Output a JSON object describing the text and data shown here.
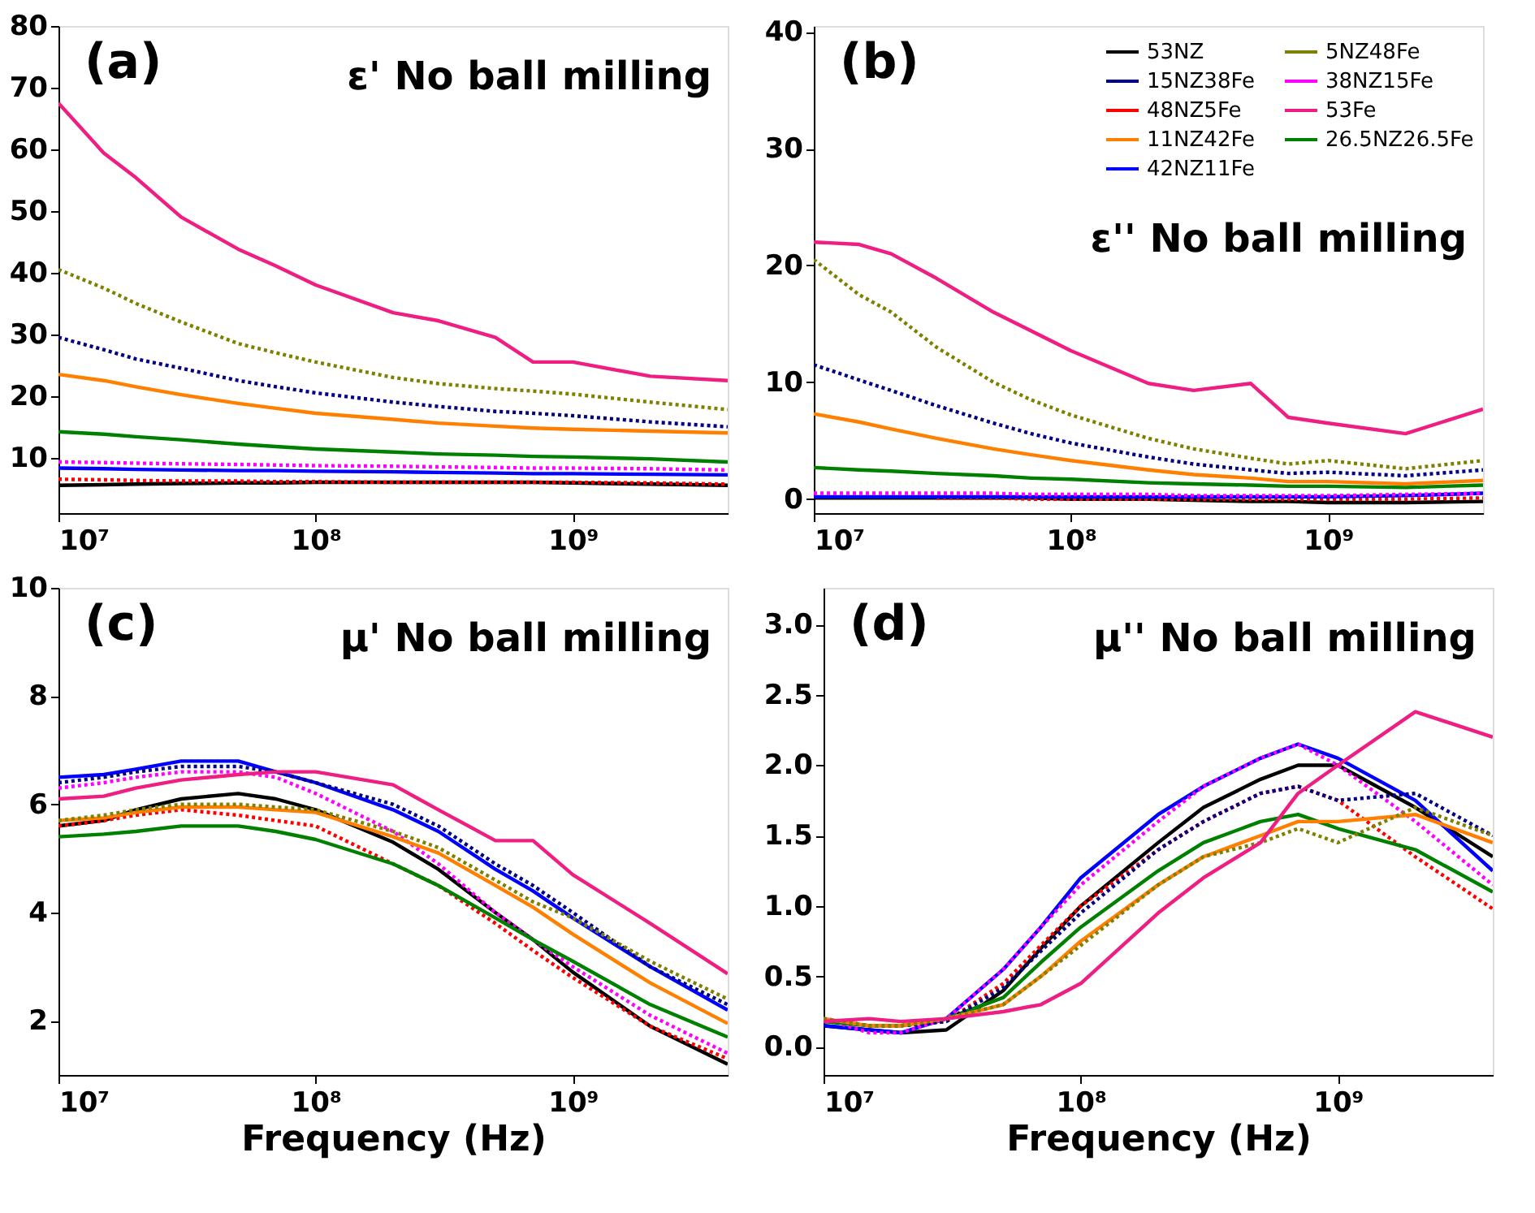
{
  "chart_data": [
    {
      "type": "line",
      "annotations": [
        "(a)",
        "ε' No ball milling"
      ],
      "legend": false,
      "x": [
        10000000.0,
        15000000.0,
        20000000.0,
        30000000.0,
        50000000.0,
        70000000.0,
        100000000.0,
        200000000.0,
        300000000.0,
        500000000.0,
        700000000.0,
        1000000000.0,
        2000000000.0,
        4000000000.0
      ],
      "xlim": [
        10000000.0,
        4000000000.0
      ],
      "xticks": [
        {
          "value": 10000000.0,
          "label": "10⁷"
        },
        {
          "value": 100000000.0,
          "label": "10⁸"
        },
        {
          "value": 1000000000.0,
          "label": "10⁹"
        }
      ],
      "ylim": [
        1,
        80
      ],
      "yticks": [
        10,
        20,
        30,
        40,
        50,
        60,
        70,
        80
      ],
      "log": "x",
      "grid": false,
      "series": [
        {
          "color": "#000000",
          "line_style": "solid",
          "values": [
            5.5,
            5.6,
            5.7,
            5.8,
            5.9,
            5.9,
            6,
            6,
            6,
            6,
            6,
            5.9,
            5.7,
            5.5
          ]
        },
        {
          "color": "#ff0000",
          "line_style": "dotted",
          "values": [
            6.5,
            6.4,
            6.3,
            6.2,
            6.2,
            6.1,
            6.1,
            6,
            6,
            6,
            6,
            6,
            5.9,
            5.7
          ]
        },
        {
          "color": "#0000ff",
          "line_style": "solid",
          "values": [
            8.3,
            8.2,
            8.1,
            8,
            7.9,
            7.9,
            7.8,
            7.7,
            7.6,
            7.5,
            7.4,
            7.4,
            7.3,
            7.2
          ]
        },
        {
          "color": "#ff00ff",
          "line_style": "dotted",
          "values": [
            9.3,
            9.2,
            9.1,
            9,
            8.9,
            8.8,
            8.7,
            8.6,
            8.5,
            8.4,
            8.3,
            8.3,
            8.2,
            8
          ]
        },
        {
          "color": "#008000",
          "line_style": "solid",
          "values": [
            14.2,
            13.8,
            13.4,
            12.9,
            12.2,
            11.8,
            11.4,
            10.9,
            10.6,
            10.4,
            10.2,
            10.1,
            9.8,
            9.3
          ]
        },
        {
          "color": "#000080",
          "line_style": "dotted",
          "values": [
            29.5,
            27.5,
            26,
            24.5,
            22.5,
            21.5,
            20.5,
            19,
            18.3,
            17.5,
            17.2,
            16.8,
            15.8,
            15
          ]
        },
        {
          "color": "#ff8000",
          "line_style": "solid",
          "values": [
            23.5,
            22.5,
            21.5,
            20.2,
            18.8,
            18,
            17.2,
            16.2,
            15.6,
            15.1,
            14.8,
            14.6,
            14.3,
            14
          ]
        },
        {
          "color": "#808000",
          "line_style": "dotted",
          "values": [
            40.5,
            37.5,
            35,
            32,
            28.5,
            27,
            25.5,
            23,
            22,
            21.2,
            20.8,
            20.3,
            19,
            17.8
          ]
        },
        {
          "color": "#ee1e82",
          "line_style": "solid",
          "values": [
            67.5,
            59.4,
            55.4,
            49,
            43.8,
            41.1,
            38,
            33.5,
            32.2,
            29.5,
            25.5,
            25.5,
            23.2,
            22.5
          ]
        }
      ]
    },
    {
      "type": "line",
      "annotations": [
        "(b)",
        "ε'' No ball milling"
      ],
      "legend": "top right",
      "x": [
        10000000.0,
        15000000.0,
        20000000.0,
        30000000.0,
        50000000.0,
        70000000.0,
        100000000.0,
        200000000.0,
        300000000.0,
        500000000.0,
        700000000.0,
        1000000000.0,
        2000000000.0,
        4000000000.0
      ],
      "xlim": [
        10000000.0,
        4000000000.0
      ],
      "xticks": [
        {
          "value": 10000000.0,
          "label": "10⁷"
        },
        {
          "value": 100000000.0,
          "label": "10⁸"
        },
        {
          "value": 1000000000.0,
          "label": "10⁹"
        }
      ],
      "ylim": [
        -1.2,
        40.5
      ],
      "yticks": [
        0,
        10,
        20,
        30,
        40
      ],
      "log": "x",
      "grid": false,
      "series": [
        {
          "name": "53NZ",
          "color": "#000000",
          "line_style": "solid",
          "values": [
            0.1,
            0.1,
            0.1,
            0.1,
            0.1,
            0.1,
            0,
            0,
            -0.1,
            -0.2,
            -0.2,
            -0.3,
            -0.3,
            -0.2
          ]
        },
        {
          "name": "48NZ5Fe",
          "color": "#ff0000",
          "line_style": "dotted",
          "values": [
            null,
            null,
            null,
            0.1,
            0.1,
            0,
            0,
            0,
            0,
            0,
            0,
            0,
            0,
            0.1
          ]
        },
        {
          "name": "42NZ11Fe",
          "color": "#0000ff",
          "line_style": "solid",
          "values": [
            0.2,
            0.2,
            0.2,
            0.2,
            0.2,
            0.2,
            0.2,
            0.2,
            0.2,
            0.2,
            0.2,
            0.2,
            0.3,
            0.5
          ]
        },
        {
          "name": "38NZ15Fe",
          "color": "#ff00ff",
          "line_style": "dotted",
          "values": [
            0.5,
            0.5,
            0.5,
            0.5,
            0.5,
            0.4,
            0.4,
            0.4,
            0.3,
            0.3,
            0.3,
            0.3,
            0.4,
            0.5
          ]
        },
        {
          "name": "26.5NZ26.5Fe",
          "color": "#008000",
          "line_style": "solid",
          "values": [
            2.7,
            2.5,
            2.4,
            2.2,
            2,
            1.8,
            1.7,
            1.4,
            1.3,
            1.2,
            1.1,
            1.1,
            1,
            1.2
          ]
        },
        {
          "name": "15NZ38Fe",
          "color": "#000080",
          "line_style": "dotted",
          "values": [
            11.5,
            10.2,
            9.3,
            8,
            6.5,
            5.6,
            4.8,
            3.6,
            3,
            2.5,
            2.2,
            2.3,
            2,
            2.5
          ]
        },
        {
          "name": "11NZ42Fe",
          "color": "#ff8000",
          "line_style": "solid",
          "values": [
            7.3,
            6.6,
            6,
            5.2,
            4.3,
            3.8,
            3.3,
            2.5,
            2.1,
            1.8,
            1.5,
            1.5,
            1.3,
            1.6
          ]
        },
        {
          "name": "5NZ48Fe",
          "color": "#808000",
          "line_style": "dotted",
          "values": [
            20.5,
            17.5,
            16,
            13,
            10,
            8.5,
            7.2,
            5.2,
            4.3,
            3.5,
            3,
            3.3,
            2.6,
            3.3
          ]
        },
        {
          "name": "53Fe",
          "color": "#ee1e82",
          "line_style": "solid",
          "values": [
            22,
            21.8,
            21,
            18.9,
            16,
            14.4,
            12.7,
            9.9,
            9.3,
            9.9,
            7,
            6.5,
            5.6,
            7.7
          ]
        }
      ]
    },
    {
      "type": "line",
      "annotations": [
        "(c)",
        "μ' No ball milling"
      ],
      "legend": false,
      "xlabel": "Frequency (Hz)",
      "x": [
        10000000.0,
        15000000.0,
        20000000.0,
        30000000.0,
        50000000.0,
        70000000.0,
        100000000.0,
        200000000.0,
        300000000.0,
        500000000.0,
        700000000.0,
        1000000000.0,
        2000000000.0,
        4000000000.0
      ],
      "xlim": [
        10000000.0,
        4000000000.0
      ],
      "xticks": [
        {
          "value": 10000000.0,
          "label": "10⁷"
        },
        {
          "value": 100000000.0,
          "label": "10⁸"
        },
        {
          "value": 1000000000.0,
          "label": "10⁹"
        }
      ],
      "ylim": [
        1,
        10
      ],
      "yticks": [
        2,
        4,
        6,
        8,
        10
      ],
      "log": "x",
      "grid": false,
      "series": [
        {
          "color": "#000000",
          "line_style": "solid",
          "values": [
            5.6,
            5.7,
            5.9,
            6.1,
            6.2,
            6.1,
            5.9,
            5.3,
            4.8,
            4,
            3.5,
            2.9,
            1.9,
            1.2
          ]
        },
        {
          "color": "#ff0000",
          "line_style": "dotted",
          "values": [
            5.6,
            5.7,
            5.8,
            5.9,
            5.8,
            5.7,
            5.6,
            4.9,
            4.5,
            3.8,
            3.3,
            2.8,
            1.9,
            1.3
          ]
        },
        {
          "color": "#0000ff",
          "line_style": "solid",
          "values": [
            6.5,
            6.55,
            6.65,
            6.8,
            6.8,
            6.6,
            6.4,
            5.9,
            5.5,
            4.8,
            4.4,
            3.9,
            3,
            2.2
          ]
        },
        {
          "color": "#ff00ff",
          "line_style": "dotted",
          "values": [
            6.3,
            6.4,
            6.5,
            6.6,
            6.6,
            6.5,
            6.2,
            5.5,
            4.9,
            4,
            3.5,
            3,
            2.1,
            1.4
          ]
        },
        {
          "color": "#008000",
          "line_style": "solid",
          "values": [
            5.4,
            5.45,
            5.5,
            5.6,
            5.6,
            5.5,
            5.35,
            4.9,
            4.5,
            3.9,
            3.5,
            3.1,
            2.3,
            1.7
          ]
        },
        {
          "color": "#000080",
          "line_style": "dotted",
          "values": [
            6.4,
            6.5,
            6.6,
            6.7,
            6.7,
            6.6,
            6.4,
            6,
            5.6,
            4.9,
            4.5,
            4,
            3,
            2.3
          ]
        },
        {
          "color": "#ff8000",
          "line_style": "solid",
          "values": [
            5.7,
            5.75,
            5.85,
            5.95,
            5.95,
            5.9,
            5.85,
            5.4,
            5.1,
            4.5,
            4.1,
            3.6,
            2.7,
            1.95
          ]
        },
        {
          "color": "#808000",
          "line_style": "dotted",
          "values": [
            5.7,
            5.8,
            5.9,
            6,
            6,
            5.95,
            5.9,
            5.5,
            5.2,
            4.6,
            4.2,
            3.9,
            3.1,
            2.4
          ]
        },
        {
          "color": "#ee1e82",
          "line_style": "solid",
          "values": [
            6.1,
            6.15,
            6.3,
            6.45,
            6.55,
            6.6,
            6.6,
            6.36,
            5.9,
            5.33,
            5.33,
            4.7,
            3.8,
            2.87
          ]
        }
      ]
    },
    {
      "type": "line",
      "annotations": [
        "(d)",
        "μ'' No ball milling"
      ],
      "legend": false,
      "xlabel": "Frequency (Hz)",
      "x": [
        10000000.0,
        15000000.0,
        20000000.0,
        30000000.0,
        50000000.0,
        70000000.0,
        100000000.0,
        200000000.0,
        300000000.0,
        500000000.0,
        700000000.0,
        1000000000.0,
        2000000000.0,
        4000000000.0
      ],
      "xlim": [
        10000000.0,
        4000000000.0
      ],
      "xticks": [
        {
          "value": 10000000.0,
          "label": "10⁷"
        },
        {
          "value": 100000000.0,
          "label": "10⁸"
        },
        {
          "value": 1000000000.0,
          "label": "10⁹"
        }
      ],
      "ylim": [
        -0.2,
        3.26
      ],
      "yticks": [
        {
          "value": 0,
          "label": "0.0"
        },
        0.5,
        {
          "value": 1,
          "label": "1.0"
        },
        1.5,
        {
          "value": 2,
          "label": "2.0"
        },
        2.5,
        {
          "value": 3,
          "label": "3.0"
        }
      ],
      "log": "x",
      "grid": false,
      "series": [
        {
          "color": "#000000",
          "line_style": "solid",
          "values": [
            0.15,
            0.12,
            0.1,
            0.12,
            0.4,
            0.7,
            1,
            1.45,
            1.7,
            1.9,
            2,
            2,
            1.7,
            1.35
          ]
        },
        {
          "color": "#ff0000",
          "line_style": "dotted",
          "values": [
            0.18,
            0.15,
            0.15,
            0.18,
            0.45,
            0.72,
            1,
            1.4,
            1.6,
            1.8,
            1.85,
            1.75,
            1.35,
            0.98
          ]
        },
        {
          "color": "#0000ff",
          "line_style": "solid",
          "values": [
            0.15,
            0.12,
            0.1,
            0.2,
            0.55,
            0.85,
            1.2,
            1.65,
            1.85,
            2.05,
            2.15,
            2.05,
            1.75,
            1.25
          ]
        },
        {
          "color": "#ff00ff",
          "line_style": "dotted",
          "values": [
            0.2,
            0.1,
            0.1,
            0.2,
            0.55,
            0.85,
            1.15,
            1.6,
            1.85,
            2.05,
            2.15,
            2,
            1.6,
            1.15
          ]
        },
        {
          "color": "#008000",
          "line_style": "solid",
          "values": [
            0.18,
            0.15,
            0.15,
            0.2,
            0.35,
            0.6,
            0.85,
            1.25,
            1.45,
            1.6,
            1.65,
            1.55,
            1.4,
            1.1
          ]
        },
        {
          "color": "#000080",
          "line_style": "dotted",
          "values": [
            0.2,
            0.15,
            0.15,
            0.18,
            0.42,
            0.68,
            0.95,
            1.4,
            1.6,
            1.8,
            1.85,
            1.75,
            1.8,
            1.5
          ]
        },
        {
          "color": "#ff8000",
          "line_style": "solid",
          "values": [
            0.2,
            0.15,
            0.15,
            0.2,
            0.3,
            0.5,
            0.75,
            1.15,
            1.35,
            1.5,
            1.6,
            1.6,
            1.65,
            1.45
          ]
        },
        {
          "color": "#808000",
          "line_style": "dotted",
          "values": [
            0.2,
            0.15,
            0.15,
            0.2,
            0.3,
            0.5,
            0.72,
            1.15,
            1.35,
            1.45,
            1.55,
            1.45,
            1.7,
            1.5
          ]
        },
        {
          "color": "#ee1e82",
          "line_style": "solid",
          "values": [
            0.18,
            0.2,
            0.18,
            0.2,
            0.25,
            0.3,
            0.45,
            0.95,
            1.2,
            1.45,
            1.8,
            2,
            2.38,
            2.2
          ]
        }
      ]
    }
  ]
}
